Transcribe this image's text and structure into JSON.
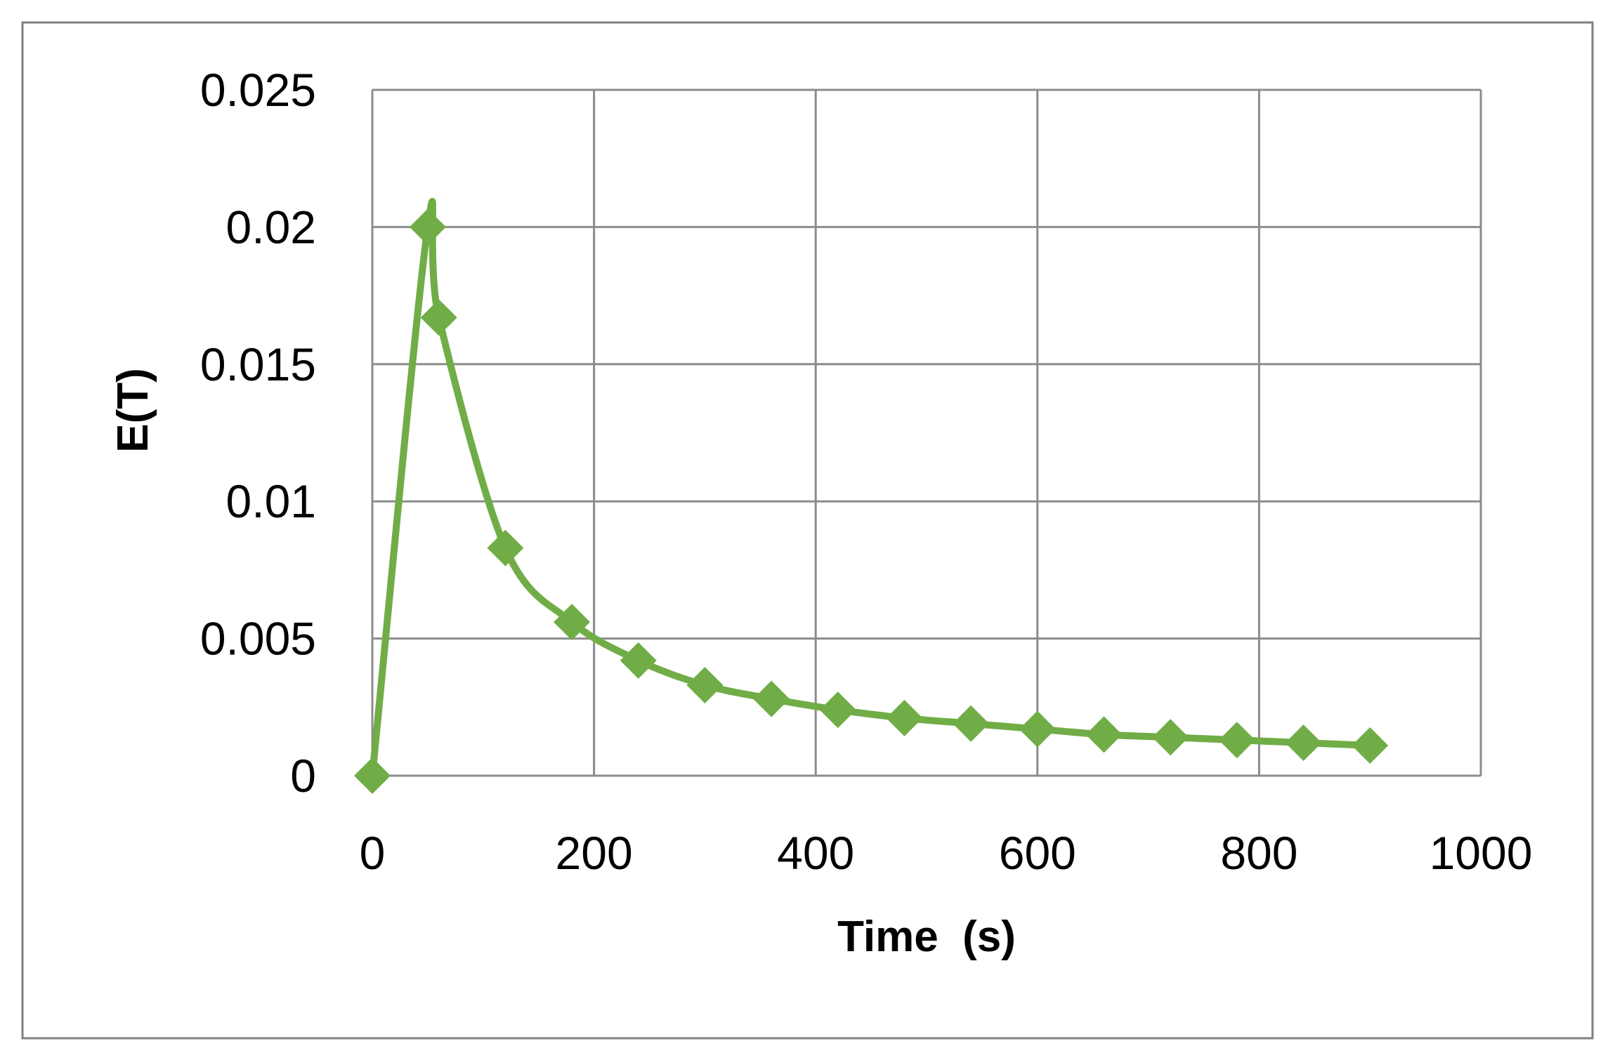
{
  "chart_data": {
    "type": "scatter",
    "title": "",
    "xlabel": "Time  (s)",
    "ylabel": "E(T)",
    "xlim": [
      0,
      1000
    ],
    "ylim": [
      0,
      0.025
    ],
    "x_ticks": [
      "0",
      "200",
      "400",
      "600",
      "800",
      "1000"
    ],
    "y_ticks": [
      "0",
      "0.005",
      "0.01",
      "0.015",
      "0.02",
      "0.025"
    ],
    "x_tick_values": [
      0,
      200,
      400,
      600,
      800,
      1000
    ],
    "y_tick_values": [
      0,
      0.005,
      0.01,
      0.015,
      0.02,
      0.025
    ],
    "grid": true,
    "legend": "none",
    "series": [
      {
        "color": "#70ad47",
        "marker": "diamond",
        "line": "smooth",
        "x": [
          0,
          50,
          60,
          120,
          180,
          240,
          300,
          360,
          420,
          480,
          540,
          600,
          660,
          720,
          780,
          840,
          900
        ],
        "y": [
          0,
          0.02,
          0.0167,
          0.0083,
          0.0056,
          0.0042,
          0.0033,
          0.0028,
          0.0024,
          0.0021,
          0.0019,
          0.0017,
          0.0015,
          0.0014,
          0.0013,
          0.0012,
          0.0011
        ]
      }
    ]
  }
}
